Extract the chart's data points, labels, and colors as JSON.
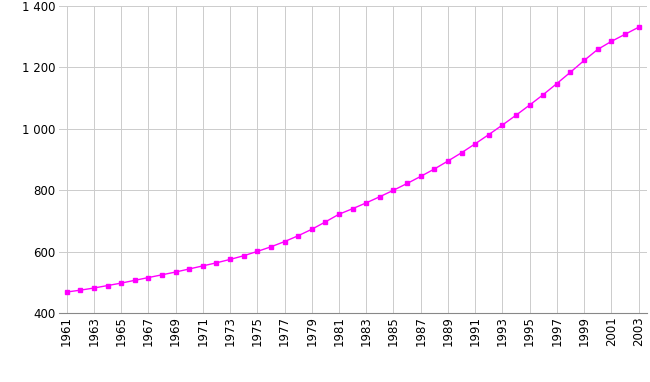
{
  "years": [
    1961,
    1962,
    1963,
    1964,
    1965,
    1966,
    1967,
    1968,
    1969,
    1970,
    1971,
    1972,
    1973,
    1974,
    1975,
    1976,
    1977,
    1978,
    1979,
    1980,
    1981,
    1982,
    1983,
    1984,
    1985,
    1986,
    1987,
    1988,
    1989,
    1990,
    1991,
    1992,
    1993,
    1994,
    1995,
    1996,
    1997,
    1998,
    1999,
    2000,
    2001,
    2002,
    2003
  ],
  "population": [
    469,
    475,
    482,
    490,
    498,
    507,
    516,
    525,
    534,
    544,
    554,
    564,
    575,
    587,
    601,
    616,
    633,
    652,
    673,
    697,
    722,
    740,
    759,
    779,
    800,
    822,
    845,
    869,
    895,
    922,
    951,
    981,
    1012,
    1044,
    1077,
    1111,
    1147,
    1184,
    1222,
    1258,
    1284,
    1307,
    1330
  ],
  "line_color": "#FF00FF",
  "marker": "s",
  "marker_size": 3.5,
  "ylim": [
    400,
    1400
  ],
  "yticks": [
    400,
    600,
    800,
    1000,
    1200,
    1400
  ],
  "ytick_labels": [
    "400",
    "600",
    "800",
    "1 000",
    "1 200",
    "1 400"
  ],
  "xtick_labels": [
    "1961",
    "1963",
    "1965",
    "1967",
    "1969",
    "1971",
    "1973",
    "1975",
    "1977",
    "1979",
    "1981",
    "1983",
    "1985",
    "1987",
    "1989",
    "1991",
    "1993",
    "1995",
    "1997",
    "1999",
    "2001",
    "2003"
  ],
  "background_color": "#ffffff",
  "grid_color": "#cccccc"
}
